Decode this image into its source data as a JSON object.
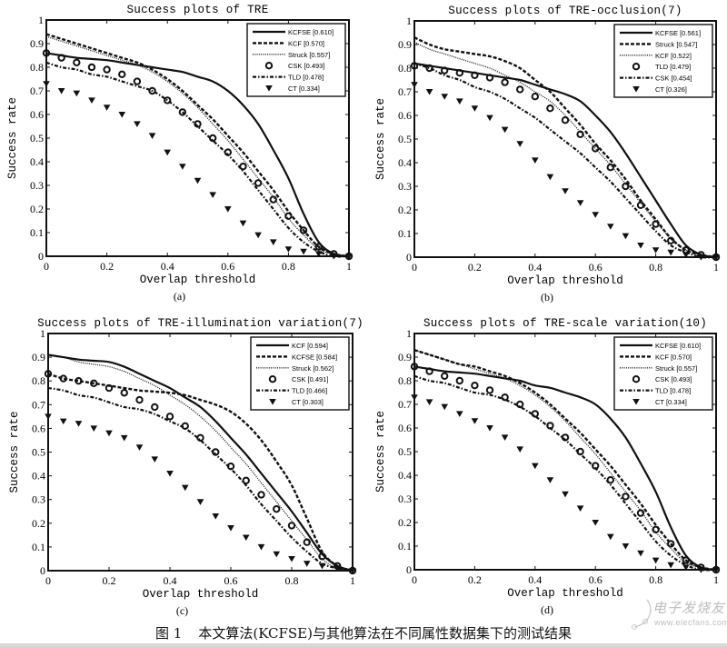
{
  "figure": {
    "caption_label": "图 1",
    "caption_text": "本文算法(KCFSE)与其他算法在不同属性数据集下的测试结果",
    "watermark": {
      "top": "电子发烧友",
      "bottom": "www.elecfans.com"
    }
  },
  "styles": {
    "KCFSE": "solid",
    "KCF": "dashed",
    "Struck": "dotted",
    "CSK": "circle",
    "TLD": "dashdot",
    "CT": "triangle"
  },
  "chart_data": [
    {
      "id": "a",
      "type": "line",
      "title": "Success plots of TRE",
      "sublabel": "(a)",
      "xlabel": "Overlap threshold",
      "ylabel": "Success rate",
      "xlim": [
        0,
        1
      ],
      "ylim": [
        0,
        1
      ],
      "xticks": [
        "0",
        "0.2",
        "0.4",
        "0.6",
        "0.8",
        "1"
      ],
      "yticks": [
        "0",
        "0.1",
        "0.2",
        "0.3",
        "0.4",
        "0.5",
        "0.6",
        "0.7",
        "0.8",
        "0.9",
        "1"
      ],
      "legend_position": "upper right",
      "legend": [
        "KCFSE [0.610]",
        "KCF [0.570]",
        "Struck [0.557]",
        "CSK [0.493]",
        "TLD [0.478]",
        "CT [0.334]"
      ],
      "x": [
        0,
        0.05,
        0.1,
        0.15,
        0.2,
        0.25,
        0.3,
        0.35,
        0.4,
        0.45,
        0.5,
        0.55,
        0.6,
        0.65,
        0.7,
        0.75,
        0.8,
        0.85,
        0.9,
        0.95,
        1.0
      ],
      "series": [
        {
          "name": "KCFSE",
          "score": 0.61,
          "style": "solid",
          "values": [
            0.86,
            0.85,
            0.84,
            0.835,
            0.83,
            0.82,
            0.81,
            0.8,
            0.79,
            0.78,
            0.76,
            0.74,
            0.7,
            0.64,
            0.56,
            0.45,
            0.33,
            0.18,
            0.06,
            0.01,
            0.0
          ]
        },
        {
          "name": "KCF",
          "score": 0.57,
          "style": "dashed",
          "values": [
            0.94,
            0.92,
            0.9,
            0.88,
            0.86,
            0.84,
            0.82,
            0.79,
            0.75,
            0.7,
            0.64,
            0.58,
            0.51,
            0.44,
            0.36,
            0.28,
            0.19,
            0.11,
            0.04,
            0.01,
            0.0
          ]
        },
        {
          "name": "Struck",
          "score": 0.557,
          "style": "dotted",
          "values": [
            0.93,
            0.91,
            0.89,
            0.87,
            0.85,
            0.83,
            0.81,
            0.78,
            0.74,
            0.69,
            0.63,
            0.56,
            0.49,
            0.41,
            0.33,
            0.25,
            0.16,
            0.09,
            0.03,
            0.01,
            0.0
          ]
        },
        {
          "name": "CSK",
          "score": 0.493,
          "style": "circle",
          "values": [
            0.86,
            0.84,
            0.82,
            0.8,
            0.79,
            0.77,
            0.74,
            0.7,
            0.66,
            0.61,
            0.56,
            0.5,
            0.44,
            0.38,
            0.31,
            0.24,
            0.17,
            0.11,
            0.04,
            0.01,
            0.0
          ]
        },
        {
          "name": "TLD",
          "score": 0.478,
          "style": "dashdot",
          "values": [
            0.82,
            0.8,
            0.79,
            0.77,
            0.76,
            0.74,
            0.72,
            0.7,
            0.66,
            0.61,
            0.55,
            0.49,
            0.43,
            0.36,
            0.28,
            0.2,
            0.12,
            0.06,
            0.02,
            0.0,
            0.0
          ]
        },
        {
          "name": "CT",
          "score": 0.334,
          "style": "triangle",
          "values": [
            0.73,
            0.7,
            0.69,
            0.66,
            0.63,
            0.6,
            0.56,
            0.51,
            0.44,
            0.38,
            0.32,
            0.26,
            0.2,
            0.14,
            0.09,
            0.06,
            0.03,
            0.02,
            0.01,
            0.0,
            0.0
          ]
        }
      ]
    },
    {
      "id": "b",
      "type": "line",
      "title": "Success plots of TRE-occlusion(7)",
      "sublabel": "(b)",
      "xlabel": "Overlap threshold",
      "ylabel": "Success rate",
      "xlim": [
        0,
        1
      ],
      "ylim": [
        0,
        1
      ],
      "xticks": [
        "0",
        "0.2",
        "0.4",
        "0.6",
        "0.8",
        "1"
      ],
      "yticks": [
        "0",
        "0.1",
        "0.2",
        "0.3",
        "0.4",
        "0.5",
        "0.6",
        "0.7",
        "0.8",
        "0.9",
        "1"
      ],
      "legend_position": "upper right",
      "legend": [
        "KCFSE [0.561]",
        "Struck [0.547]",
        "KCF [0.522]",
        "TLD [0.479]",
        "CSK [0.454]",
        "CT [0.326]"
      ],
      "x": [
        0,
        0.05,
        0.1,
        0.15,
        0.2,
        0.25,
        0.3,
        0.35,
        0.4,
        0.45,
        0.5,
        0.55,
        0.6,
        0.65,
        0.7,
        0.75,
        0.8,
        0.85,
        0.9,
        0.95,
        1.0
      ],
      "series": [
        {
          "name": "KCFSE",
          "score": 0.561,
          "style": "solid",
          "values": [
            0.82,
            0.81,
            0.8,
            0.79,
            0.78,
            0.77,
            0.76,
            0.75,
            0.73,
            0.71,
            0.69,
            0.66,
            0.6,
            0.53,
            0.44,
            0.34,
            0.24,
            0.14,
            0.05,
            0.01,
            0.0
          ]
        },
        {
          "name": "Struck",
          "score": 0.547,
          "style": "dashed",
          "values": [
            0.93,
            0.9,
            0.88,
            0.87,
            0.86,
            0.85,
            0.83,
            0.8,
            0.75,
            0.7,
            0.63,
            0.56,
            0.48,
            0.41,
            0.33,
            0.24,
            0.16,
            0.08,
            0.03,
            0.01,
            0.0
          ]
        },
        {
          "name": "KCF",
          "score": 0.522,
          "style": "dotted",
          "values": [
            0.91,
            0.88,
            0.86,
            0.84,
            0.82,
            0.8,
            0.77,
            0.74,
            0.7,
            0.66,
            0.6,
            0.53,
            0.46,
            0.39,
            0.31,
            0.23,
            0.15,
            0.08,
            0.03,
            0.01,
            0.0
          ]
        },
        {
          "name": "TLD",
          "score": 0.479,
          "style": "circle",
          "values": [
            0.81,
            0.8,
            0.79,
            0.78,
            0.77,
            0.76,
            0.74,
            0.71,
            0.68,
            0.63,
            0.58,
            0.52,
            0.46,
            0.38,
            0.3,
            0.22,
            0.14,
            0.07,
            0.03,
            0.01,
            0.0
          ]
        },
        {
          "name": "CSK",
          "score": 0.454,
          "style": "dashdot",
          "values": [
            0.82,
            0.8,
            0.77,
            0.75,
            0.72,
            0.7,
            0.67,
            0.63,
            0.59,
            0.54,
            0.49,
            0.44,
            0.38,
            0.32,
            0.25,
            0.18,
            0.11,
            0.05,
            0.02,
            0.0,
            0.0
          ]
        },
        {
          "name": "CT",
          "score": 0.326,
          "style": "triangle",
          "values": [
            0.73,
            0.7,
            0.68,
            0.66,
            0.63,
            0.59,
            0.54,
            0.48,
            0.41,
            0.34,
            0.28,
            0.23,
            0.18,
            0.13,
            0.09,
            0.05,
            0.03,
            0.02,
            0.01,
            0.0,
            0.0
          ]
        }
      ]
    },
    {
      "id": "c",
      "type": "line",
      "title": "Success plots of TRE-illumination variation(7)",
      "sublabel": "(c)",
      "xlabel": "Overlap threshold",
      "ylabel": "Success rate",
      "xlim": [
        0,
        1
      ],
      "ylim": [
        0,
        1
      ],
      "xticks": [
        "0",
        "0.2",
        "0.4",
        "0.6",
        "0.8",
        "1"
      ],
      "yticks": [
        "0",
        "0.1",
        "0.2",
        "0.3",
        "0.4",
        "0.5",
        "0.6",
        "0.7",
        "0.8",
        "0.9",
        "1"
      ],
      "legend_position": "upper right",
      "legend": [
        "KCF [0.594]",
        "KCFSE [0.584]",
        "Struck [0.562]",
        "CSK [0.491]",
        "TLD [0.466]",
        "CT [0.303]"
      ],
      "x": [
        0,
        0.05,
        0.1,
        0.15,
        0.2,
        0.25,
        0.3,
        0.35,
        0.4,
        0.45,
        0.5,
        0.55,
        0.6,
        0.65,
        0.7,
        0.75,
        0.8,
        0.85,
        0.9,
        0.95,
        1.0
      ],
      "series": [
        {
          "name": "KCF",
          "score": 0.594,
          "style": "solid",
          "values": [
            0.91,
            0.9,
            0.89,
            0.885,
            0.88,
            0.86,
            0.83,
            0.8,
            0.77,
            0.73,
            0.69,
            0.63,
            0.56,
            0.49,
            0.41,
            0.33,
            0.25,
            0.16,
            0.07,
            0.02,
            0.0
          ]
        },
        {
          "name": "KCFSE",
          "score": 0.584,
          "style": "dashed",
          "values": [
            0.83,
            0.81,
            0.8,
            0.79,
            0.78,
            0.77,
            0.76,
            0.755,
            0.75,
            0.74,
            0.72,
            0.7,
            0.67,
            0.62,
            0.55,
            0.46,
            0.36,
            0.22,
            0.08,
            0.02,
            0.0
          ]
        },
        {
          "name": "Struck",
          "score": 0.562,
          "style": "dotted",
          "values": [
            0.91,
            0.9,
            0.88,
            0.87,
            0.86,
            0.84,
            0.81,
            0.78,
            0.74,
            0.7,
            0.65,
            0.59,
            0.52,
            0.45,
            0.37,
            0.29,
            0.21,
            0.13,
            0.05,
            0.01,
            0.0
          ]
        },
        {
          "name": "CSK",
          "score": 0.491,
          "style": "circle",
          "values": [
            0.83,
            0.81,
            0.8,
            0.79,
            0.77,
            0.75,
            0.72,
            0.69,
            0.65,
            0.61,
            0.56,
            0.5,
            0.44,
            0.38,
            0.32,
            0.26,
            0.19,
            0.12,
            0.06,
            0.02,
            0.0
          ]
        },
        {
          "name": "TLD",
          "score": 0.466,
          "style": "dashdot",
          "values": [
            0.77,
            0.76,
            0.74,
            0.73,
            0.71,
            0.69,
            0.68,
            0.66,
            0.63,
            0.6,
            0.55,
            0.49,
            0.43,
            0.36,
            0.28,
            0.21,
            0.14,
            0.08,
            0.03,
            0.01,
            0.0
          ]
        },
        {
          "name": "CT",
          "score": 0.303,
          "style": "triangle",
          "values": [
            0.65,
            0.63,
            0.62,
            0.6,
            0.58,
            0.56,
            0.52,
            0.47,
            0.41,
            0.35,
            0.29,
            0.23,
            0.18,
            0.14,
            0.1,
            0.07,
            0.05,
            0.03,
            0.02,
            0.01,
            0.0
          ]
        }
      ]
    },
    {
      "id": "d",
      "type": "line",
      "title": "Success plots of TRE-scale variation(10)",
      "sublabel": "(d)",
      "xlabel": "Overlap threshold",
      "ylabel": "Success rate",
      "xlim": [
        0,
        1
      ],
      "ylim": [
        0,
        1
      ],
      "xticks": [
        "0",
        "0.2",
        "0.4",
        "0.6",
        "0.8",
        "1"
      ],
      "yticks": [
        "0",
        "0.1",
        "0.2",
        "0.3",
        "0.4",
        "0.5",
        "0.6",
        "0.7",
        "0.8",
        "0.9",
        "1"
      ],
      "legend_position": "upper right",
      "legend": [
        "KCFSE [0.610]",
        "KCF [0.570]",
        "Struck [0.557]",
        "CSK [0.493]",
        "TLD [0.478]",
        "CT [0.334]"
      ],
      "x": [
        0,
        0.05,
        0.1,
        0.15,
        0.2,
        0.25,
        0.3,
        0.35,
        0.4,
        0.45,
        0.5,
        0.55,
        0.6,
        0.65,
        0.7,
        0.75,
        0.8,
        0.85,
        0.9,
        0.95,
        1.0
      ],
      "series": [
        {
          "name": "KCFSE",
          "score": 0.61,
          "style": "solid",
          "values": [
            0.86,
            0.85,
            0.84,
            0.835,
            0.83,
            0.82,
            0.81,
            0.8,
            0.78,
            0.77,
            0.75,
            0.73,
            0.7,
            0.64,
            0.56,
            0.45,
            0.33,
            0.18,
            0.06,
            0.01,
            0.0
          ]
        },
        {
          "name": "KCF",
          "score": 0.57,
          "style": "dashed",
          "values": [
            0.93,
            0.91,
            0.89,
            0.87,
            0.86,
            0.84,
            0.82,
            0.79,
            0.75,
            0.7,
            0.64,
            0.58,
            0.51,
            0.44,
            0.36,
            0.28,
            0.19,
            0.11,
            0.04,
            0.01,
            0.0
          ]
        },
        {
          "name": "Struck",
          "score": 0.557,
          "style": "dotted",
          "values": [
            0.93,
            0.91,
            0.89,
            0.87,
            0.85,
            0.83,
            0.81,
            0.78,
            0.74,
            0.69,
            0.63,
            0.56,
            0.49,
            0.41,
            0.33,
            0.25,
            0.16,
            0.09,
            0.03,
            0.01,
            0.0
          ]
        },
        {
          "name": "CSK",
          "score": 0.493,
          "style": "circle",
          "values": [
            0.86,
            0.84,
            0.82,
            0.8,
            0.78,
            0.76,
            0.73,
            0.7,
            0.66,
            0.61,
            0.56,
            0.5,
            0.44,
            0.38,
            0.31,
            0.24,
            0.17,
            0.11,
            0.04,
            0.01,
            0.0
          ]
        },
        {
          "name": "TLD",
          "score": 0.478,
          "style": "dashdot",
          "values": [
            0.82,
            0.8,
            0.79,
            0.77,
            0.75,
            0.74,
            0.72,
            0.69,
            0.65,
            0.6,
            0.55,
            0.49,
            0.43,
            0.36,
            0.28,
            0.2,
            0.12,
            0.06,
            0.02,
            0.0,
            0.0
          ]
        },
        {
          "name": "CT",
          "score": 0.334,
          "style": "triangle",
          "values": [
            0.73,
            0.71,
            0.69,
            0.66,
            0.63,
            0.6,
            0.56,
            0.51,
            0.44,
            0.38,
            0.32,
            0.26,
            0.2,
            0.14,
            0.1,
            0.07,
            0.04,
            0.02,
            0.01,
            0.0,
            0.0
          ]
        }
      ]
    }
  ]
}
